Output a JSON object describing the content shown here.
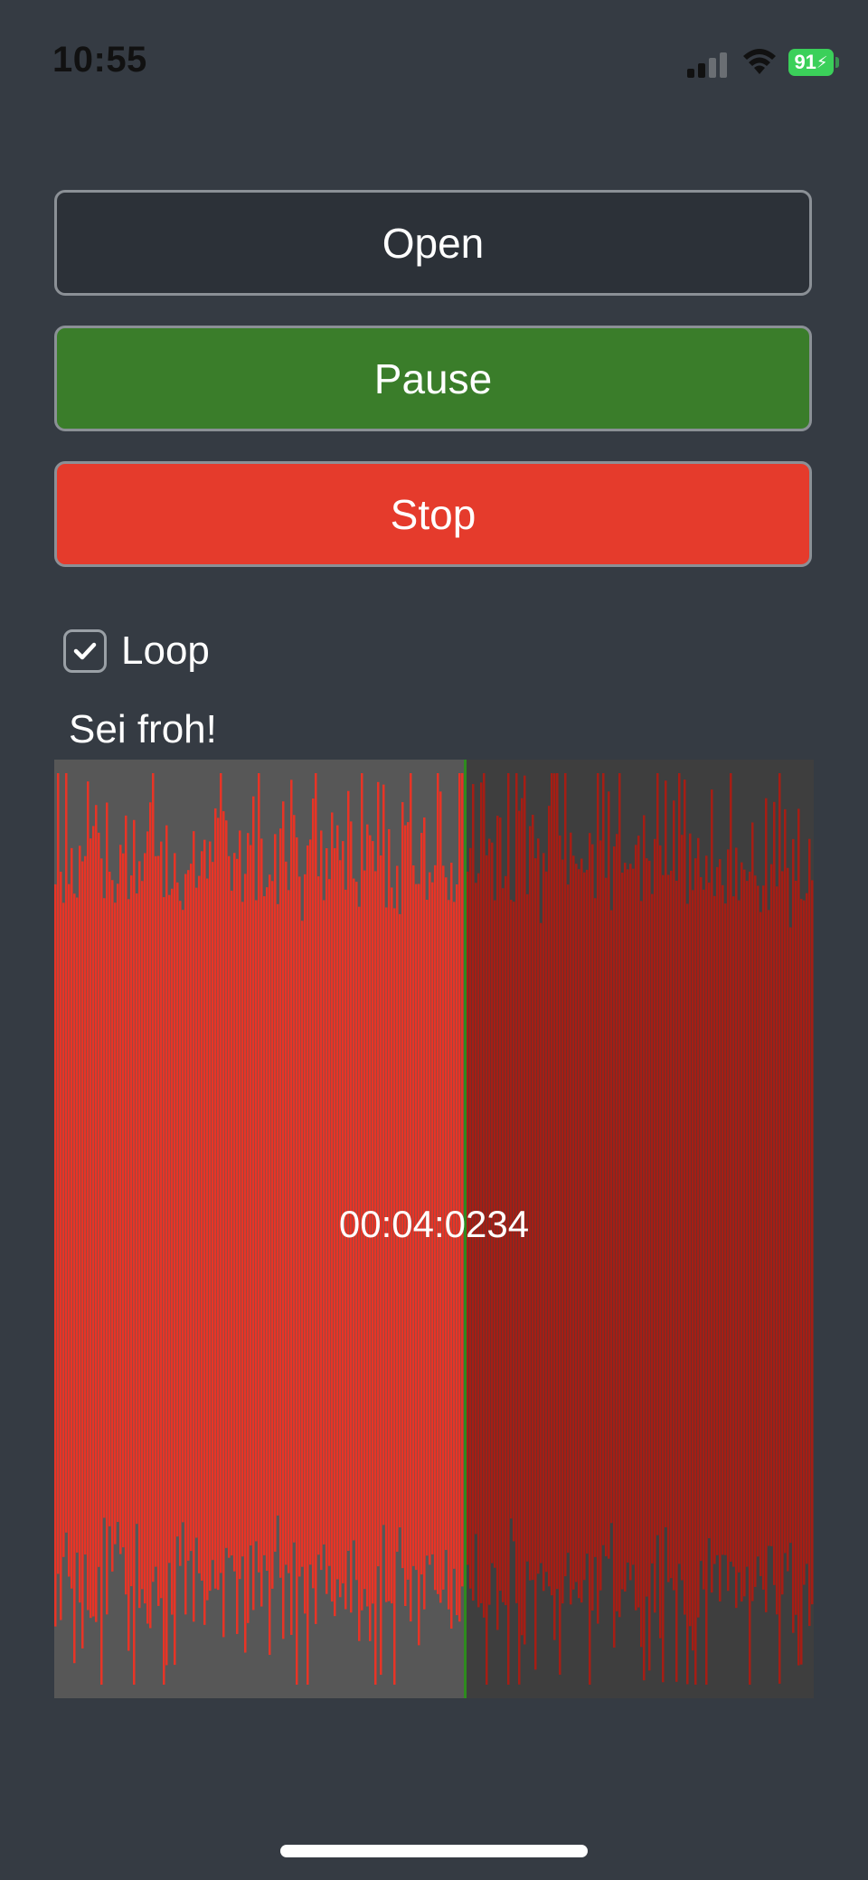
{
  "status_bar": {
    "time": "10:55",
    "battery_level": "91",
    "battery_color": "#3bd05a",
    "icons": [
      "signal-icon",
      "wifi-icon",
      "battery-icon"
    ]
  },
  "controls": {
    "open_label": "Open",
    "pause_label": "Pause",
    "stop_label": "Stop"
  },
  "colors": {
    "open_bg": "#2c3138",
    "pause_bg": "#3a7d2a",
    "stop_bg": "#e53b2c",
    "waveform_played": "#e83426",
    "waveform_unplayed": "#a61d14",
    "played_region_bg": "#575757",
    "unplayed_region_bg": "#3e3e3e",
    "playhead": "#2e8b1e"
  },
  "loop": {
    "label": "Loop",
    "checked": true
  },
  "track": {
    "title": "Sei froh!",
    "position_text": "00:04:0234",
    "progress": 0.54
  }
}
